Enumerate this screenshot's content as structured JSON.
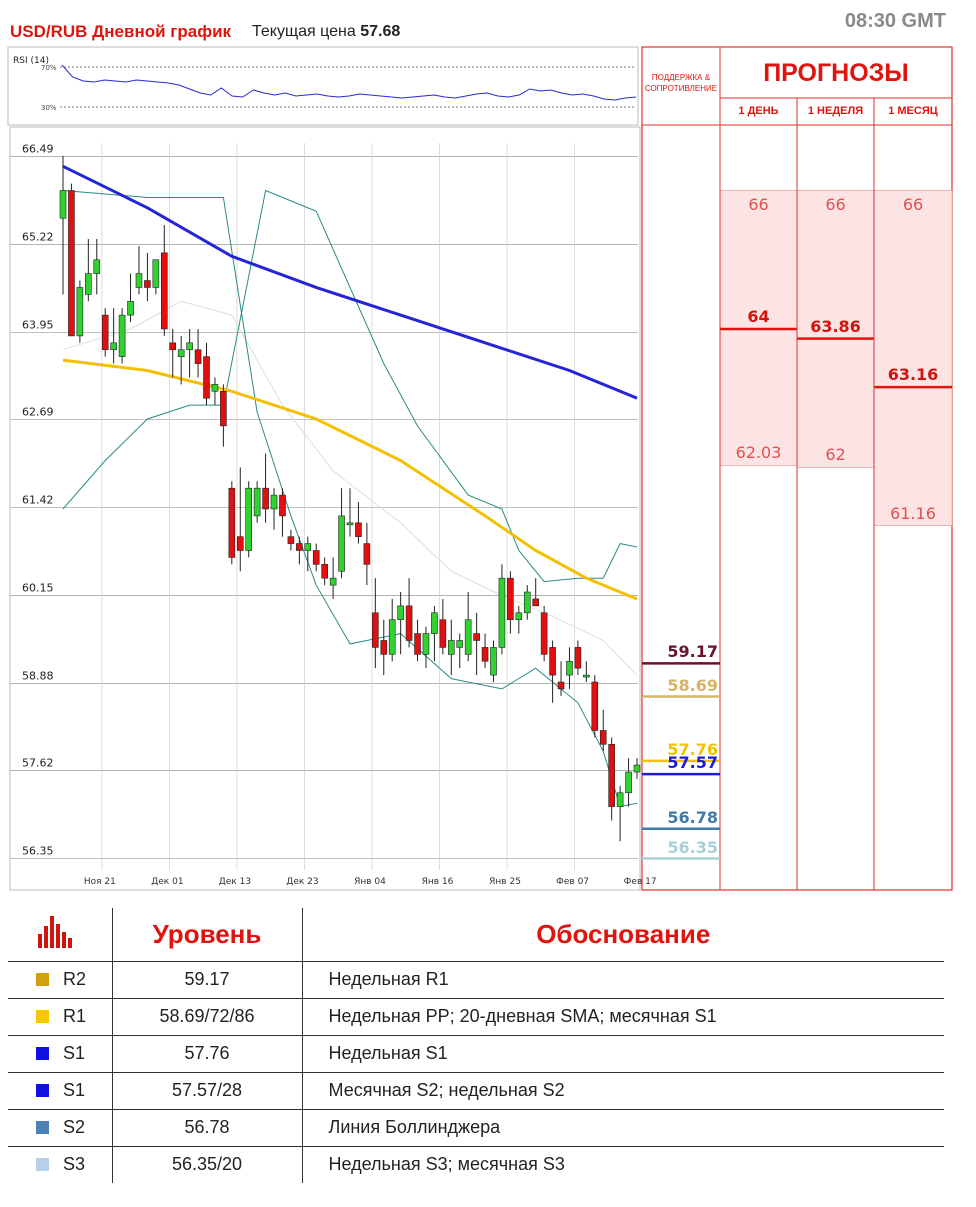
{
  "header": {
    "title": "USD/RUB Дневной график",
    "price_label": "Текущая цена",
    "price_value": "57.68",
    "time": "08:30 GMT"
  },
  "rsi": {
    "label": "RSI (14)",
    "upper_label": "70%",
    "lower_label": "30%",
    "values": [
      72,
      60,
      56,
      55,
      57,
      56,
      55,
      57,
      56,
      55,
      54,
      52,
      48,
      44,
      42,
      49,
      41,
      40,
      47,
      44,
      42,
      44,
      41,
      42,
      43,
      41,
      40,
      41,
      43,
      42,
      41,
      40,
      39,
      40,
      41,
      42,
      40,
      39,
      41,
      43,
      44,
      41,
      40,
      42,
      48,
      46,
      47,
      44,
      42,
      43,
      41,
      38,
      37,
      39,
      40
    ]
  },
  "chart_data": {
    "type": "candlestick",
    "instrument": "USD/RUB",
    "y_ticks": [
      66.49,
      65.22,
      63.95,
      62.69,
      61.42,
      60.15,
      58.88,
      57.62,
      56.35
    ],
    "ylim": [
      56.3,
      66.6
    ],
    "x_ticks": [
      {
        "label": "Ноя 21",
        "i": 2
      },
      {
        "label": "Дек 01",
        "i": 10
      },
      {
        "label": "Дек 13",
        "i": 18
      },
      {
        "label": "Дек 23",
        "i": 26
      },
      {
        "label": "Янв 04",
        "i": 34
      },
      {
        "label": "Янв 16",
        "i": 42
      },
      {
        "label": "Янв 25",
        "i": 50
      },
      {
        "label": "Фев 07",
        "i": 58
      },
      {
        "label": "Фев 17",
        "i": 66
      }
    ],
    "candles": [
      {
        "o": 65.6,
        "h": 66.5,
        "l": 64.5,
        "c": 66.0
      },
      {
        "o": 66.0,
        "h": 66.1,
        "l": 63.9,
        "c": 63.9
      },
      {
        "o": 63.9,
        "h": 64.7,
        "l": 63.8,
        "c": 64.6
      },
      {
        "o": 64.5,
        "h": 65.3,
        "l": 64.4,
        "c": 64.8
      },
      {
        "o": 64.8,
        "h": 65.3,
        "l": 64.5,
        "c": 65.0
      },
      {
        "o": 64.2,
        "h": 64.3,
        "l": 63.6,
        "c": 63.7
      },
      {
        "o": 63.7,
        "h": 64.3,
        "l": 63.5,
        "c": 63.8
      },
      {
        "o": 63.6,
        "h": 64.3,
        "l": 63.5,
        "c": 64.2
      },
      {
        "o": 64.2,
        "h": 64.8,
        "l": 64.1,
        "c": 64.4
      },
      {
        "o": 64.6,
        "h": 65.2,
        "l": 64.5,
        "c": 64.8
      },
      {
        "o": 64.7,
        "h": 65.1,
        "l": 64.4,
        "c": 64.6
      },
      {
        "o": 64.6,
        "h": 65.0,
        "l": 64.5,
        "c": 65.0
      },
      {
        "o": 65.1,
        "h": 65.5,
        "l": 63.9,
        "c": 64.0
      },
      {
        "o": 63.8,
        "h": 64.0,
        "l": 63.3,
        "c": 63.7
      },
      {
        "o": 63.6,
        "h": 63.9,
        "l": 63.2,
        "c": 63.7
      },
      {
        "o": 63.7,
        "h": 64.0,
        "l": 63.3,
        "c": 63.8
      },
      {
        "o": 63.7,
        "h": 64.0,
        "l": 63.3,
        "c": 63.5
      },
      {
        "o": 63.6,
        "h": 63.8,
        "l": 62.9,
        "c": 63.0
      },
      {
        "o": 63.1,
        "h": 63.3,
        "l": 62.9,
        "c": 63.2
      },
      {
        "o": 63.1,
        "h": 63.2,
        "l": 62.3,
        "c": 62.6
      },
      {
        "o": 61.7,
        "h": 61.8,
        "l": 60.6,
        "c": 60.7
      },
      {
        "o": 61.0,
        "h": 62.0,
        "l": 60.5,
        "c": 60.8
      },
      {
        "o": 60.8,
        "h": 61.8,
        "l": 60.7,
        "c": 61.7
      },
      {
        "o": 61.3,
        "h": 61.8,
        "l": 61.2,
        "c": 61.7
      },
      {
        "o": 61.7,
        "h": 62.2,
        "l": 61.2,
        "c": 61.4
      },
      {
        "o": 61.4,
        "h": 61.7,
        "l": 61.1,
        "c": 61.6
      },
      {
        "o": 61.6,
        "h": 61.7,
        "l": 61.0,
        "c": 61.3
      },
      {
        "o": 61.0,
        "h": 61.1,
        "l": 60.8,
        "c": 60.9
      },
      {
        "o": 60.9,
        "h": 61.0,
        "l": 60.6,
        "c": 60.8
      },
      {
        "o": 60.8,
        "h": 61.0,
        "l": 60.5,
        "c": 60.9
      },
      {
        "o": 60.8,
        "h": 60.9,
        "l": 60.5,
        "c": 60.6
      },
      {
        "o": 60.6,
        "h": 60.7,
        "l": 60.3,
        "c": 60.4
      },
      {
        "o": 60.3,
        "h": 60.7,
        "l": 60.1,
        "c": 60.4
      },
      {
        "o": 60.5,
        "h": 61.7,
        "l": 60.4,
        "c": 61.3
      },
      {
        "o": 61.2,
        "h": 61.7,
        "l": 61.0,
        "c": 61.2
      },
      {
        "o": 61.2,
        "h": 61.5,
        "l": 60.9,
        "c": 61.0
      },
      {
        "o": 60.9,
        "h": 61.2,
        "l": 60.3,
        "c": 60.6
      },
      {
        "o": 59.9,
        "h": 60.4,
        "l": 59.1,
        "c": 59.4
      },
      {
        "o": 59.5,
        "h": 59.8,
        "l": 59.0,
        "c": 59.3
      },
      {
        "o": 59.3,
        "h": 60.1,
        "l": 59.2,
        "c": 59.8
      },
      {
        "o": 59.8,
        "h": 60.2,
        "l": 59.3,
        "c": 60.0
      },
      {
        "o": 60.0,
        "h": 60.4,
        "l": 59.4,
        "c": 59.5
      },
      {
        "o": 59.6,
        "h": 59.8,
        "l": 59.2,
        "c": 59.3
      },
      {
        "o": 59.3,
        "h": 59.7,
        "l": 59.1,
        "c": 59.6
      },
      {
        "o": 59.6,
        "h": 60.0,
        "l": 59.2,
        "c": 59.9
      },
      {
        "o": 59.8,
        "h": 60.1,
        "l": 59.3,
        "c": 59.4
      },
      {
        "o": 59.3,
        "h": 59.8,
        "l": 59.0,
        "c": 59.5
      },
      {
        "o": 59.4,
        "h": 59.6,
        "l": 59.1,
        "c": 59.5
      },
      {
        "o": 59.3,
        "h": 60.2,
        "l": 59.2,
        "c": 59.8
      },
      {
        "o": 59.6,
        "h": 59.9,
        "l": 59.0,
        "c": 59.5
      },
      {
        "o": 59.4,
        "h": 59.6,
        "l": 59.1,
        "c": 59.2
      },
      {
        "o": 59.0,
        "h": 59.5,
        "l": 58.9,
        "c": 59.4
      },
      {
        "o": 59.4,
        "h": 60.6,
        "l": 59.3,
        "c": 60.4
      },
      {
        "o": 60.4,
        "h": 60.5,
        "l": 59.6,
        "c": 59.8
      },
      {
        "o": 59.8,
        "h": 60.0,
        "l": 59.6,
        "c": 59.9
      },
      {
        "o": 59.9,
        "h": 60.3,
        "l": 59.8,
        "c": 60.2
      },
      {
        "o": 60.1,
        "h": 60.4,
        "l": 60.0,
        "c": 60.0
      },
      {
        "o": 59.9,
        "h": 60.0,
        "l": 59.2,
        "c": 59.3
      },
      {
        "o": 59.4,
        "h": 59.5,
        "l": 58.6,
        "c": 59.0
      },
      {
        "o": 58.9,
        "h": 59.2,
        "l": 58.7,
        "c": 58.8
      },
      {
        "o": 59.0,
        "h": 59.4,
        "l": 58.8,
        "c": 59.2
      },
      {
        "o": 59.4,
        "h": 59.5,
        "l": 59.0,
        "c": 59.1
      },
      {
        "o": 59.0,
        "h": 59.2,
        "l": 58.9,
        "c": 59.0
      },
      {
        "o": 58.9,
        "h": 59.0,
        "l": 58.1,
        "c": 58.2
      },
      {
        "o": 58.2,
        "h": 58.5,
        "l": 57.9,
        "c": 58.0
      },
      {
        "o": 58.0,
        "h": 58.1,
        "l": 56.9,
        "c": 57.1
      },
      {
        "o": 57.1,
        "h": 57.4,
        "l": 56.6,
        "c": 57.3
      },
      {
        "o": 57.3,
        "h": 57.8,
        "l": 57.1,
        "c": 57.6
      },
      {
        "o": 57.6,
        "h": 57.8,
        "l": 57.5,
        "c": 57.7
      }
    ],
    "sma_blue": [
      [
        0,
        66.35
      ],
      [
        10,
        65.75
      ],
      [
        20,
        65.05
      ],
      [
        30,
        64.6
      ],
      [
        40,
        64.2
      ],
      [
        50,
        63.8
      ],
      [
        60,
        63.4
      ],
      [
        68,
        63.0
      ]
    ],
    "sma_yellow": [
      [
        0,
        63.55
      ],
      [
        10,
        63.4
      ],
      [
        20,
        63.1
      ],
      [
        30,
        62.7
      ],
      [
        40,
        62.1
      ],
      [
        50,
        61.3
      ],
      [
        56,
        60.8
      ],
      [
        62,
        60.4
      ],
      [
        68,
        60.1
      ]
    ],
    "bb_upper": [
      [
        0,
        61.4
      ],
      [
        5,
        62.1
      ],
      [
        10,
        62.7
      ],
      [
        15,
        62.9
      ],
      [
        19,
        62.9
      ],
      [
        24,
        66.0
      ],
      [
        30,
        65.7
      ],
      [
        34,
        64.6
      ],
      [
        38,
        63.5
      ],
      [
        42,
        62.6
      ],
      [
        48,
        61.6
      ],
      [
        52,
        61.4
      ],
      [
        54,
        60.8
      ],
      [
        57,
        60.35
      ],
      [
        61,
        60.4
      ],
      [
        64,
        60.4
      ],
      [
        66,
        60.9
      ],
      [
        68,
        60.85
      ]
    ],
    "bb_lower": [
      [
        0,
        66.0
      ],
      [
        5,
        65.95
      ],
      [
        10,
        65.9
      ],
      [
        15,
        65.9
      ],
      [
        19,
        65.9
      ],
      [
        23,
        62.8
      ],
      [
        27,
        61.3
      ],
      [
        30,
        60.3
      ],
      [
        34,
        59.45
      ],
      [
        40,
        59.6
      ],
      [
        46,
        58.95
      ],
      [
        52,
        58.8
      ],
      [
        56,
        59.1
      ],
      [
        61,
        58.6
      ],
      [
        64,
        57.9
      ],
      [
        66,
        57.1
      ],
      [
        68,
        57.15
      ]
    ],
    "bb_mid": [
      [
        0,
        63.7
      ],
      [
        8,
        64.0
      ],
      [
        14,
        64.4
      ],
      [
        20,
        64.2
      ],
      [
        26,
        62.9
      ],
      [
        32,
        61.95
      ],
      [
        40,
        61.2
      ],
      [
        46,
        60.5
      ],
      [
        52,
        60.15
      ],
      [
        58,
        59.85
      ],
      [
        64,
        59.5
      ],
      [
        68,
        59.0
      ]
    ],
    "levels": [
      {
        "value": "59.17",
        "y": 59.17,
        "color": "#6b1030"
      },
      {
        "value": "58.69",
        "y": 58.69,
        "color": "#d9b26a"
      },
      {
        "value": "57.76",
        "y": 57.76,
        "color": "#f2c200"
      },
      {
        "value": "57.57",
        "y": 57.57,
        "color": "#1c1cd8"
      },
      {
        "value": "56.78",
        "y": 56.78,
        "color": "#3f7aa8"
      },
      {
        "value": "56.35",
        "y": 56.35,
        "color": "#a9d0d8"
      }
    ]
  },
  "forecasts": {
    "title": "ПРОГНОЗЫ",
    "support_label": "ПОДДЕРЖКА & СОПРОТИВЛЕНИЕ",
    "columns": [
      {
        "label": "1 ДЕНЬ",
        "top": "66",
        "mid": "64",
        "low": "62.03",
        "top_y": 66.0,
        "mid_y": 64.0,
        "low_y": 62.03
      },
      {
        "label": "1 НЕДЕЛЯ",
        "top": "66",
        "mid": "63.86",
        "low": "62",
        "top_y": 66.0,
        "mid_y": 63.86,
        "low_y": 62.0
      },
      {
        "label": "1 МЕСЯЦ",
        "top": "66",
        "mid": "63.16",
        "low": "61.16",
        "top_y": 66.0,
        "mid_y": 63.16,
        "low_y": 61.16
      }
    ]
  },
  "levels_table": {
    "head_level": "Уровень",
    "head_reason": "Обоснование",
    "rows": [
      {
        "name": "R2",
        "value": "59.17",
        "reason": "Недельная R1",
        "color": "#d0a010"
      },
      {
        "name": "R1",
        "value": "58.69/72/86",
        "reason": "Недельная PP; 20-дневная SMA; месячная  S1",
        "color": "#f5c800"
      },
      {
        "name": "S1",
        "value": "57.76",
        "reason": "Недельная S1",
        "color": "#1010e0"
      },
      {
        "name": "S1",
        "value": "57.57/28",
        "reason": "Месячная  S2; недельная S2",
        "color": "#1010e0"
      },
      {
        "name": "S2",
        "value": "56.78",
        "reason": "Линия Боллинджера",
        "color": "#4a82b8"
      },
      {
        "name": "S3",
        "value": "56.35/20",
        "reason": "Недельная S3; месячная  S3",
        "color": "#b8cfe8"
      }
    ]
  }
}
